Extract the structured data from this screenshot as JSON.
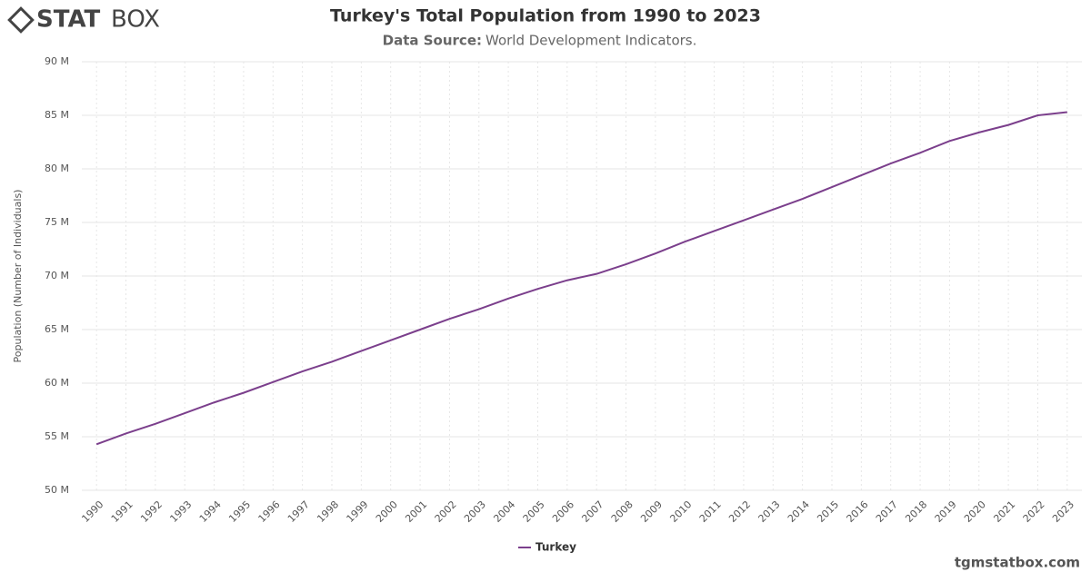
{
  "logo": {
    "bold": "STAT",
    "light": "BOX"
  },
  "footer": "tgmstatbox.com",
  "chart_data": {
    "type": "line",
    "title": "Turkey's Total Population from 1990 to 2023",
    "subtitle_label": "Data Source:",
    "subtitle": "World Development Indicators.",
    "y_label": "Population (Number of Individuals)",
    "categories": [
      "1990",
      "1991",
      "1992",
      "1993",
      "1994",
      "1995",
      "1996",
      "1997",
      "1998",
      "1999",
      "2000",
      "2001",
      "2002",
      "2003",
      "2004",
      "2005",
      "2006",
      "2007",
      "2008",
      "2009",
      "2010",
      "2011",
      "2012",
      "2013",
      "2014",
      "2015",
      "2016",
      "2017",
      "2018",
      "2019",
      "2020",
      "2021",
      "2022",
      "2023"
    ],
    "series": [
      {
        "name": "Turkey",
        "color": "#7b3f8c",
        "values": [
          54300000,
          55300000,
          56200000,
          57200000,
          58200000,
          59100000,
          60100000,
          61100000,
          62000000,
          63000000,
          64000000,
          65000000,
          66000000,
          66900000,
          67900000,
          68800000,
          69600000,
          70200000,
          71100000,
          72100000,
          73200000,
          74200000,
          75200000,
          76200000,
          77200000,
          78300000,
          79400000,
          80500000,
          81500000,
          82600000,
          83400000,
          84100000,
          85000000,
          85300000
        ]
      }
    ],
    "ylim": [
      50000000,
      90000000
    ],
    "yticks": [
      {
        "value": 50000000,
        "label": "50 M"
      },
      {
        "value": 55000000,
        "label": "55 M"
      },
      {
        "value": 60000000,
        "label": "60 M"
      },
      {
        "value": 65000000,
        "label": "65 M"
      },
      {
        "value": 70000000,
        "label": "70 M"
      },
      {
        "value": 75000000,
        "label": "75 M"
      },
      {
        "value": 80000000,
        "label": "80 M"
      },
      {
        "value": 85000000,
        "label": "85 M"
      },
      {
        "value": 90000000,
        "label": "90 M"
      }
    ],
    "grid": true,
    "legend": "bottom"
  }
}
